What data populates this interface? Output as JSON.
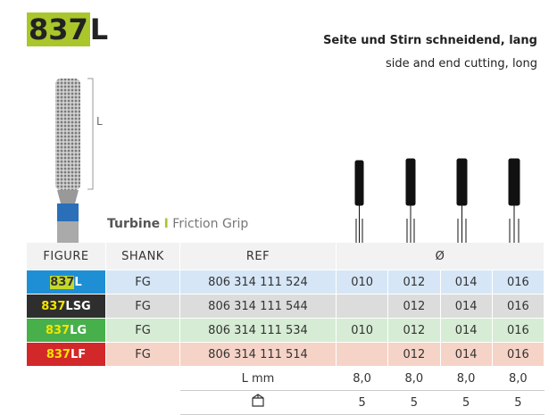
{
  "header": {
    "title_code": "837",
    "title_suffix": "L",
    "subtitle_de": "Seite und Stirn schneidend, lang",
    "subtitle_en": "side and end cutting, long"
  },
  "dimension_label": "L",
  "section": {
    "name": "Turbine",
    "separator": "I",
    "detail": "Friction Grip"
  },
  "table": {
    "columns": [
      "FIGURE",
      "SHANK",
      "REF",
      "Ø"
    ],
    "rows": [
      {
        "figure_code": "837",
        "figure_suffix": "L",
        "shank": "FG",
        "ref": "806 314 111 524",
        "sizes": [
          "010",
          "012",
          "014",
          "016"
        ]
      },
      {
        "figure_code": "837",
        "figure_suffix": "LSG",
        "shank": "FG",
        "ref": "806 314 111 544",
        "sizes": [
          null,
          "012",
          "014",
          "016"
        ]
      },
      {
        "figure_code": "837",
        "figure_suffix": "LG",
        "shank": "FG",
        "ref": "806 314 111 534",
        "sizes": [
          "010",
          "012",
          "014",
          "016"
        ]
      },
      {
        "figure_code": "837",
        "figure_suffix": "LF",
        "shank": "FG",
        "ref": "806 314 111 514",
        "sizes": [
          null,
          "012",
          "014",
          "016"
        ]
      }
    ],
    "length_label": "L mm",
    "lengths": [
      "8,0",
      "8,0",
      "8,0",
      "8,0"
    ],
    "pack_sizes": [
      5,
      5,
      5,
      5
    ]
  }
}
